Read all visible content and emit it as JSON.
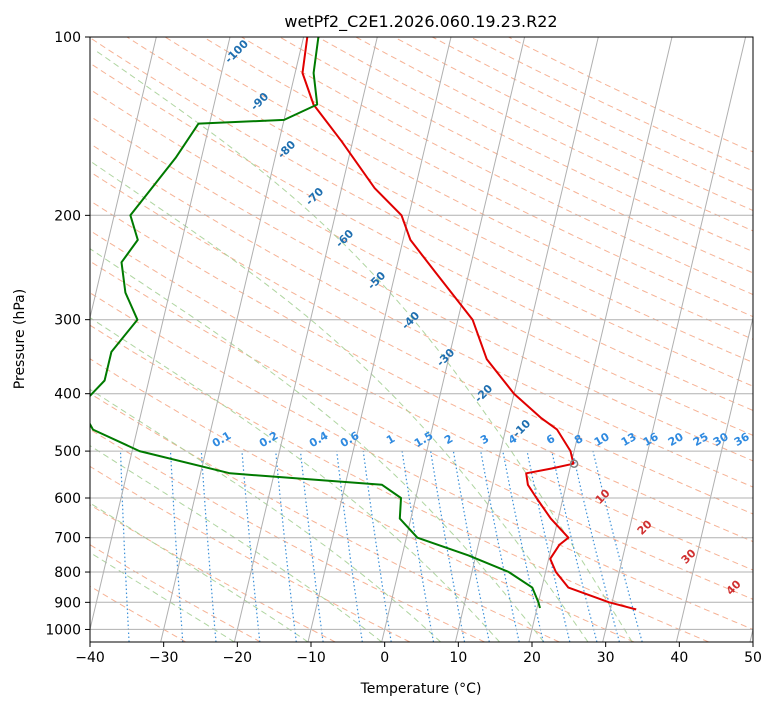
{
  "chart_data": {
    "type": "line",
    "title": "wetPf2_C2E1.2026.060.19.23.R22",
    "xlabel": "Temperature (°C)",
    "ylabel": "Pressure (hPa)",
    "xlim": [
      -40,
      50
    ],
    "ylim": [
      1050,
      100
    ],
    "y_scale": "log",
    "x_ticks": [
      -40,
      -30,
      -20,
      -10,
      0,
      10,
      20,
      30,
      40,
      50
    ],
    "y_ticks": [
      100,
      200,
      300,
      400,
      500,
      600,
      700,
      800,
      900,
      1000
    ],
    "grid": true,
    "skew_reference_pressure_hpa": 1000,
    "skew_reference_temperature_c": 30,
    "skew_top_pressure_hpa": 100,
    "skew_top_temperature_c": 11,
    "colors": {
      "temperature": "#e00000",
      "dewpoint": "#007a00",
      "isotherm": "#b0b0b0",
      "dry_adiabat": "#f4a582",
      "moist_adiabat": "#a6d096",
      "mixing_ratio": "#3a8fd8",
      "dry_adiabat_label": "#1f6fb0",
      "mixing_ratio_label": "#2f8ae0",
      "moist_label": "#d03030",
      "lcl_marker": "#808080"
    },
    "series": [
      {
        "key": "temperature",
        "points": [
          {
            "p": 925,
            "t": 33.5
          },
          {
            "p": 900,
            "t": 29.6
          },
          {
            "p": 850,
            "t": 23.6
          },
          {
            "p": 800,
            "t": 21.4
          },
          {
            "p": 760,
            "t": 20.2
          },
          {
            "p": 720,
            "t": 21.0
          },
          {
            "p": 700,
            "t": 22.0
          },
          {
            "p": 650,
            "t": 19.0
          },
          {
            "p": 600,
            "t": 16.4
          },
          {
            "p": 570,
            "t": 14.8
          },
          {
            "p": 545,
            "t": 14.2
          },
          {
            "p": 535,
            "t": 17.5
          },
          {
            "p": 525,
            "t": 20.3
          },
          {
            "p": 500,
            "t": 19.5
          },
          {
            "p": 460,
            "t": 17.0
          },
          {
            "p": 440,
            "t": 14.5
          },
          {
            "p": 400,
            "t": 10.0
          },
          {
            "p": 350,
            "t": 5.2
          },
          {
            "p": 300,
            "t": 2.0
          },
          {
            "p": 250,
            "t": -4.5
          },
          {
            "p": 220,
            "t": -9.0
          },
          {
            "p": 200,
            "t": -11.0
          },
          {
            "p": 180,
            "t": -15.5
          },
          {
            "p": 150,
            "t": -21.5
          },
          {
            "p": 130,
            "t": -26.5
          },
          {
            "p": 115,
            "t": -29.0
          },
          {
            "p": 100,
            "t": -29.5
          }
        ]
      },
      {
        "key": "dewpoint",
        "points": [
          {
            "p": 920,
            "t": 20.4
          },
          {
            "p": 900,
            "t": 20.0
          },
          {
            "p": 850,
            "t": 18.7
          },
          {
            "p": 800,
            "t": 15.0
          },
          {
            "p": 750,
            "t": 9.0
          },
          {
            "p": 700,
            "t": 1.5
          },
          {
            "p": 650,
            "t": -1.5
          },
          {
            "p": 600,
            "t": -2.0
          },
          {
            "p": 570,
            "t": -5.0
          },
          {
            "p": 545,
            "t": -26.0
          },
          {
            "p": 500,
            "t": -39.0
          },
          {
            "p": 460,
            "t": -46.0
          },
          {
            "p": 420,
            "t": -48.5
          },
          {
            "p": 380,
            "t": -46.0
          },
          {
            "p": 340,
            "t": -46.0
          },
          {
            "p": 300,
            "t": -43.5
          },
          {
            "p": 270,
            "t": -46.0
          },
          {
            "p": 240,
            "t": -47.5
          },
          {
            "p": 220,
            "t": -46.0
          },
          {
            "p": 200,
            "t": -47.8
          },
          {
            "p": 160,
            "t": -43.5
          },
          {
            "p": 140,
            "t": -41.5
          },
          {
            "p": 138,
            "t": -30.0
          },
          {
            "p": 130,
            "t": -26.0
          },
          {
            "p": 115,
            "t": -27.5
          },
          {
            "p": 100,
            "t": -28.0
          }
        ]
      }
    ],
    "lcl_marker": {
      "p": 525,
      "t": 20.4
    },
    "dry_adiabat_labels": [
      "-100",
      "-90",
      "-80",
      "-70",
      "-60",
      "-50",
      "-40",
      "-30",
      "-20",
      "-10"
    ],
    "mixing_ratio_labels": [
      "0.1",
      "0.2",
      "0.4",
      "0.6",
      "1",
      "1.5",
      "2",
      "3",
      "4",
      "6",
      "8",
      "10",
      "13",
      "16",
      "20",
      "25",
      "30",
      "36"
    ],
    "moist_adiabat_labels": [
      "10",
      "20",
      "30",
      "40"
    ]
  }
}
